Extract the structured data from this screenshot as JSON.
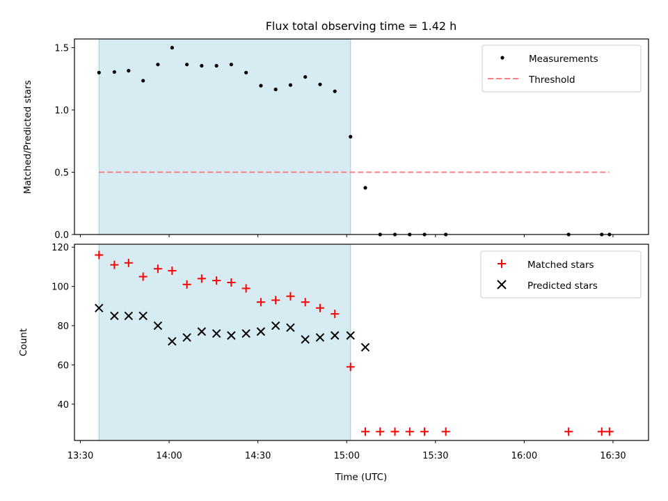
{
  "chart_data": [
    {
      "type": "scatter",
      "title": "Flux total observing time = 1.42 h",
      "xlabel": "",
      "ylabel": "Matched/Predicted stars",
      "ylim": [
        0,
        1.57
      ],
      "yticks": [
        0.0,
        0.5,
        1.0,
        1.5
      ],
      "ytick_labels": [
        "0.0",
        "0.5",
        "1.0",
        "1.5"
      ],
      "xlim_minutes": [
        808,
        1002
      ],
      "shaded_interval_minutes": [
        816.3,
        901.3
      ],
      "shade_color": "#add8e6",
      "legend_position": "upper right",
      "series": [
        {
          "name": "Measurements",
          "marker": "dot",
          "color": "#000000",
          "x_minutes": [
            816.3,
            821.5,
            826.3,
            831.2,
            836.2,
            841.0,
            846.0,
            851.0,
            856.0,
            861.0,
            866.0,
            871.0,
            876.0,
            881.0,
            886.0,
            891.0,
            896.0,
            901.3,
            906.3,
            911.3,
            916.3,
            921.3,
            926.3,
            933.5,
            975.0,
            986.2,
            988.8
          ],
          "values": [
            1.3,
            1.305,
            1.315,
            1.235,
            1.365,
            1.5,
            1.365,
            1.355,
            1.355,
            1.365,
            1.3,
            1.195,
            1.165,
            1.2,
            1.265,
            1.205,
            1.15,
            0.785,
            0.375,
            0.0,
            0.0,
            0.0,
            0.0,
            0.0,
            0.0,
            0.0,
            0.0
          ]
        },
        {
          "name": "Threshold",
          "marker": "dashed-line",
          "color": "#ff7f7f",
          "x_minutes": [
            816.3,
            988.8
          ],
          "values": [
            0.5,
            0.5
          ]
        }
      ]
    },
    {
      "type": "scatter",
      "title": "",
      "xlabel": "Time (UTC)",
      "ylabel": "Count",
      "ylim": [
        21.5,
        121.5
      ],
      "yticks": [
        40,
        60,
        80,
        100,
        120
      ],
      "ytick_labels": [
        "40",
        "60",
        "80",
        "100",
        "120"
      ],
      "xlim_minutes": [
        808,
        1002
      ],
      "xticks_minutes": [
        810,
        840,
        870,
        900,
        930,
        960,
        990
      ],
      "xtick_labels": [
        "13:30",
        "14:00",
        "14:30",
        "15:00",
        "15:30",
        "16:00",
        "16:30"
      ],
      "shaded_interval_minutes": [
        816.3,
        901.3
      ],
      "shade_color": "#add8e6",
      "legend_position": "upper right",
      "series": [
        {
          "name": "Matched stars",
          "marker": "plus",
          "color": "#ff0000",
          "x_minutes": [
            816.3,
            821.5,
            826.3,
            831.2,
            836.2,
            841.0,
            846.0,
            851.0,
            856.0,
            861.0,
            866.0,
            871.0,
            876.0,
            881.0,
            886.0,
            891.0,
            896.0,
            901.3,
            906.3,
            911.3,
            916.3,
            921.3,
            926.3,
            933.5,
            975.0,
            986.2,
            988.8
          ],
          "values": [
            116,
            111,
            112,
            105,
            109,
            108,
            101,
            104,
            103,
            102,
            99,
            92,
            93,
            95,
            92,
            89,
            86,
            59,
            26,
            26,
            26,
            26,
            26,
            26,
            26,
            26,
            26
          ]
        },
        {
          "name": "Predicted stars",
          "marker": "x",
          "color": "#000000",
          "x_minutes": [
            816.3,
            821.5,
            826.3,
            831.2,
            836.2,
            841.0,
            846.0,
            851.0,
            856.0,
            861.0,
            866.0,
            871.0,
            876.0,
            881.0,
            886.0,
            891.0,
            896.0,
            901.3,
            906.3
          ],
          "values": [
            89,
            85,
            85,
            85,
            80,
            72,
            74,
            77,
            76,
            75,
            76,
            77,
            80,
            79,
            73,
            74,
            75,
            75,
            69
          ]
        }
      ]
    }
  ]
}
